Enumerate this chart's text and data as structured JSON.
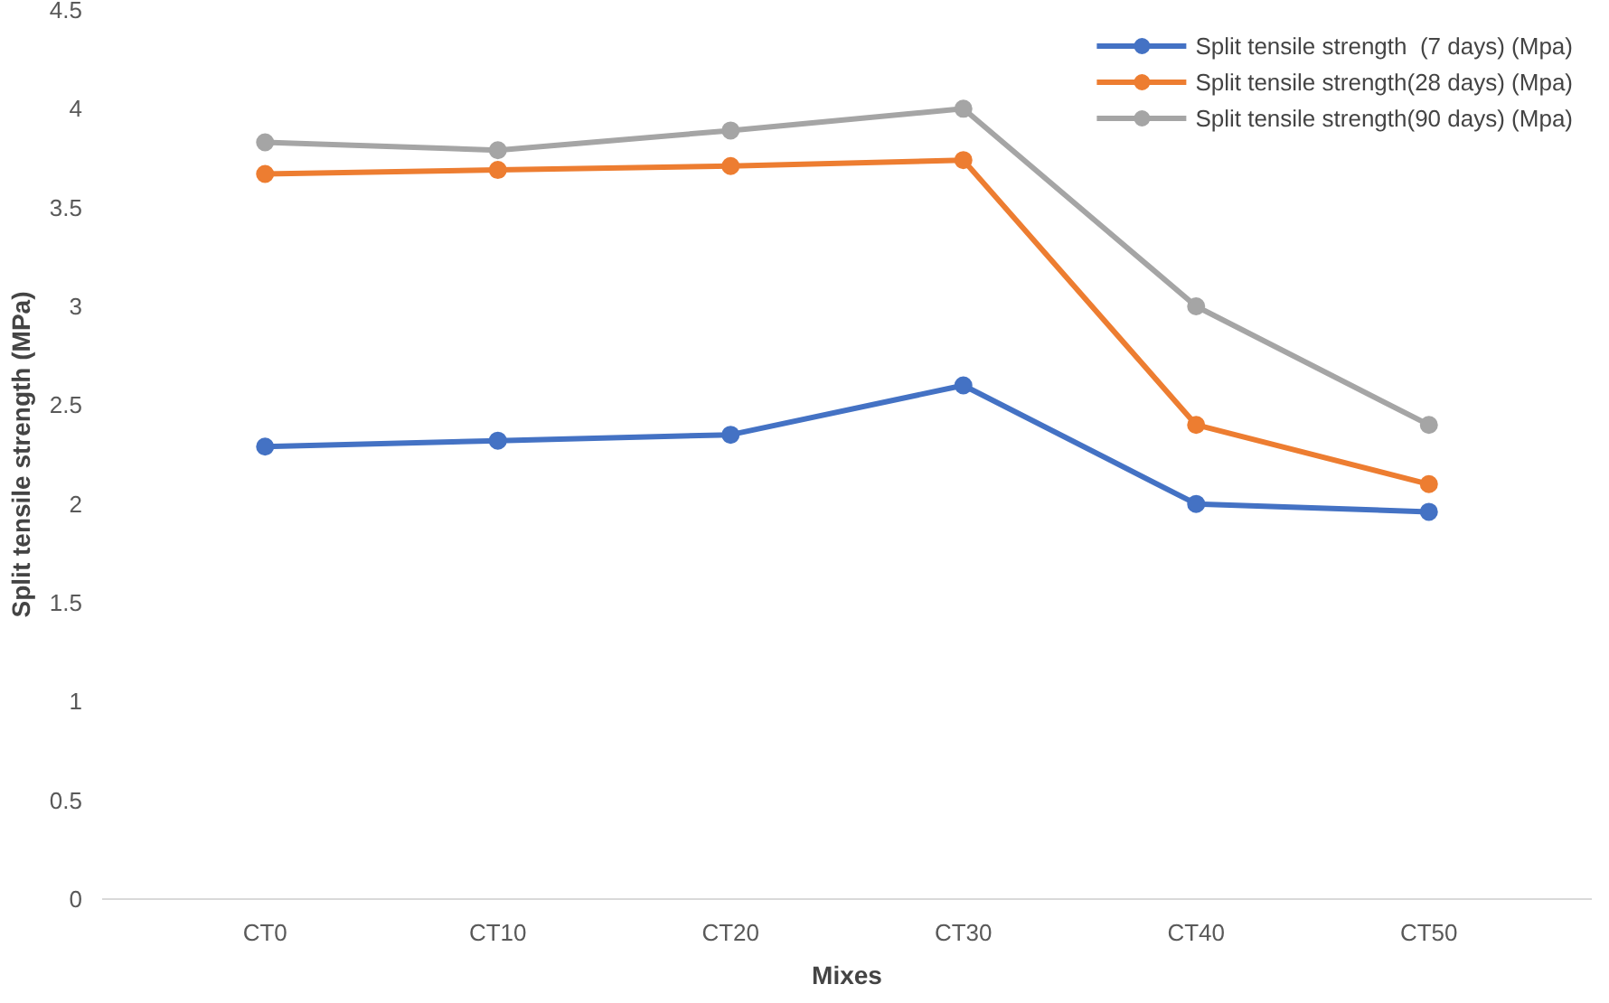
{
  "chart_data": {
    "type": "line",
    "xlabel": "Mixes",
    "ylabel": "Split tensile strength (MPa)",
    "categories": [
      "CT0",
      "CT10",
      "CT20",
      "CT30",
      "CT40",
      "CT50"
    ],
    "series": [
      {
        "name": "Split tensile strength  (7 days) (Mpa)",
        "color": "#4472c4",
        "values": [
          2.29,
          2.32,
          2.35,
          2.6,
          2.0,
          1.96
        ]
      },
      {
        "name": "Split tensile strength(28 days) (Mpa)",
        "color": "#ed7d31",
        "values": [
          3.67,
          3.69,
          3.71,
          3.74,
          2.4,
          2.1
        ]
      },
      {
        "name": "Split tensile strength(90 days) (Mpa)",
        "color": "#a5a5a5",
        "values": [
          3.83,
          3.79,
          3.89,
          4.0,
          3.0,
          2.4
        ]
      }
    ],
    "ylim": [
      0,
      4.5
    ],
    "yticks": [
      0,
      0.5,
      1,
      1.5,
      2,
      2.5,
      3,
      3.5,
      4,
      4.5
    ],
    "grid": false,
    "legend": "top right",
    "marker": "circle",
    "line_style": "solid"
  }
}
